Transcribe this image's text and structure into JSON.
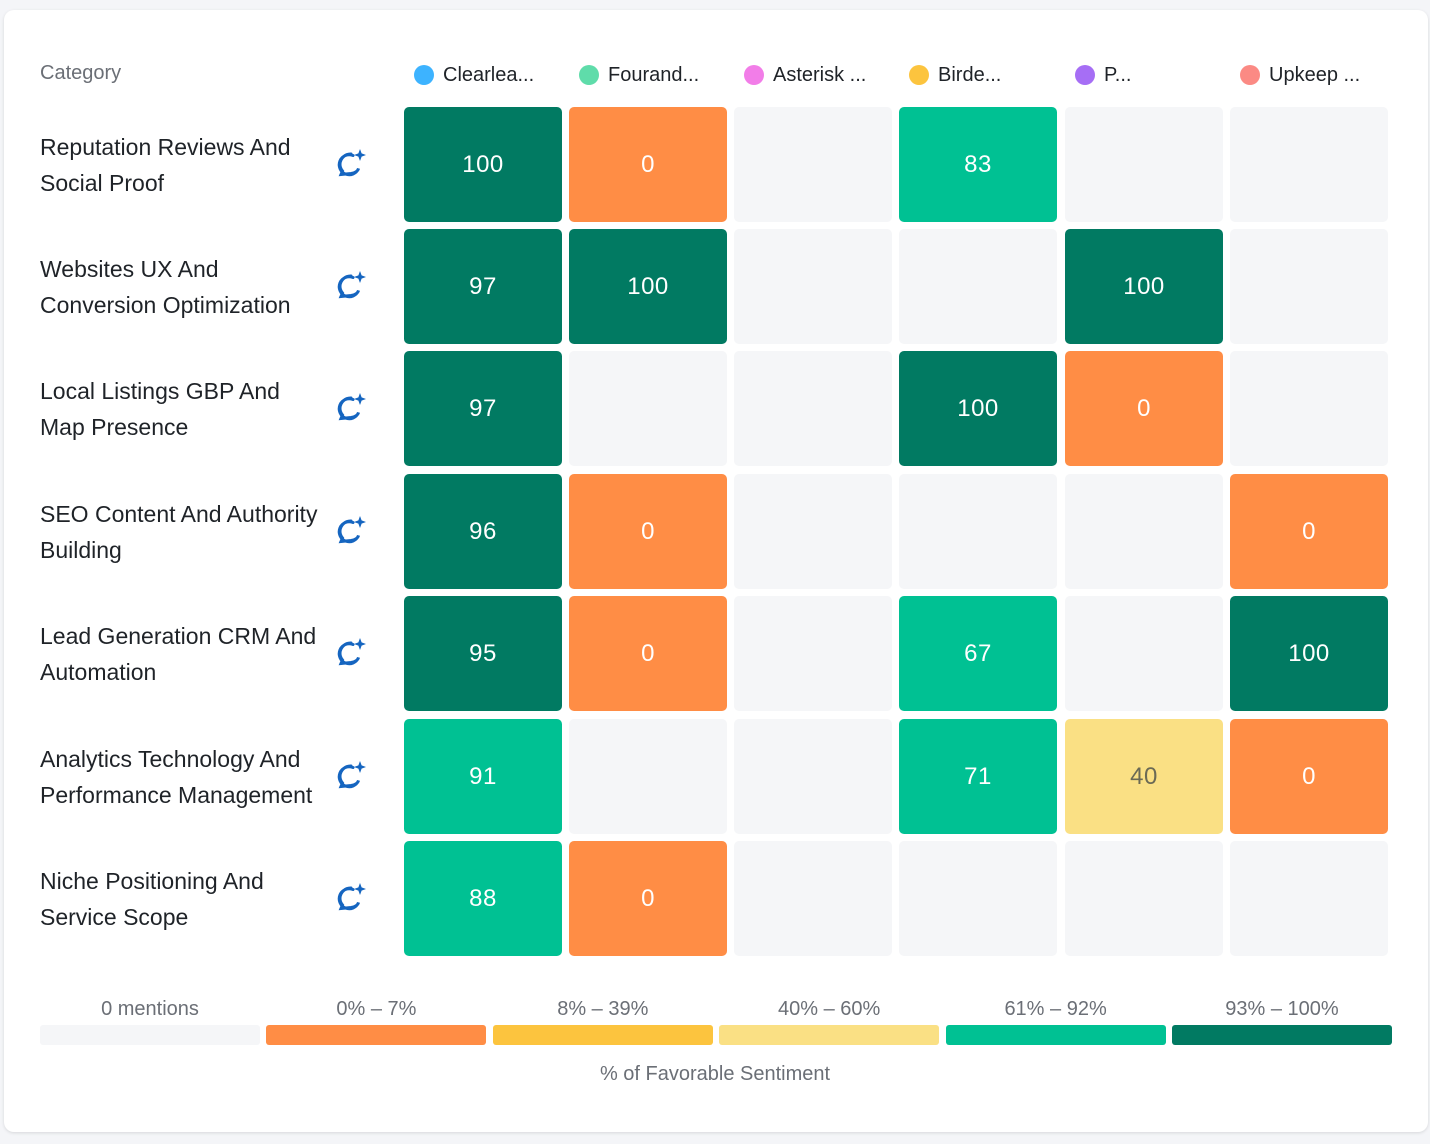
{
  "chart_data": {
    "type": "heatmap",
    "row_header": "Category",
    "columns": [
      {
        "name": "Clearlea...",
        "color": "#3db3ff"
      },
      {
        "name": "Fourand...",
        "color": "#5fdcaa"
      },
      {
        "name": "Asterisk ...",
        "color": "#f27de8"
      },
      {
        "name": "Birde...",
        "color": "#fcc43e"
      },
      {
        "name": "P...",
        "color": "#a66ef5"
      },
      {
        "name": "Upkeep ...",
        "color": "#fb8a84"
      }
    ],
    "rows": [
      {
        "label": "Reputation Reviews And Social Proof",
        "values": [
          100,
          0,
          null,
          83,
          null,
          null
        ]
      },
      {
        "label": "Websites UX And Conversion Optimization",
        "values": [
          97,
          100,
          null,
          null,
          100,
          null
        ]
      },
      {
        "label": "Local Listings GBP And Map Presence",
        "values": [
          97,
          null,
          null,
          100,
          0,
          null
        ]
      },
      {
        "label": "SEO Content And Authority Building",
        "values": [
          96,
          0,
          null,
          null,
          null,
          0
        ]
      },
      {
        "label": "Lead Generation CRM And Automation",
        "values": [
          95,
          0,
          null,
          67,
          null,
          100
        ]
      },
      {
        "label": "Analytics Technology And Performance Management",
        "values": [
          91,
          null,
          null,
          71,
          40,
          0
        ]
      },
      {
        "label": "Niche Positioning And Service Scope",
        "values": [
          88,
          0,
          null,
          null,
          null,
          null
        ]
      }
    ],
    "legend": {
      "title": "% of Favorable Sentiment",
      "bins": [
        {
          "label": "0 mentions",
          "color": "#f5f6f8"
        },
        {
          "label": "0% – 7%",
          "color": "#ff8d45",
          "min": 0,
          "max": 7
        },
        {
          "label": "8% – 39%",
          "color": "#fcc43e",
          "min": 8,
          "max": 39
        },
        {
          "label": "40% – 60%",
          "color": "#fae084",
          "min": 40,
          "max": 60
        },
        {
          "label": "61% – 92%",
          "color": "#00c193",
          "min": 61,
          "max": 92
        },
        {
          "label": "93% – 100%",
          "color": "#017a62",
          "min": 93,
          "max": 100
        }
      ]
    },
    "row_icon": "ai-chat-sparkle-icon",
    "icon_color": "#1565c0"
  }
}
